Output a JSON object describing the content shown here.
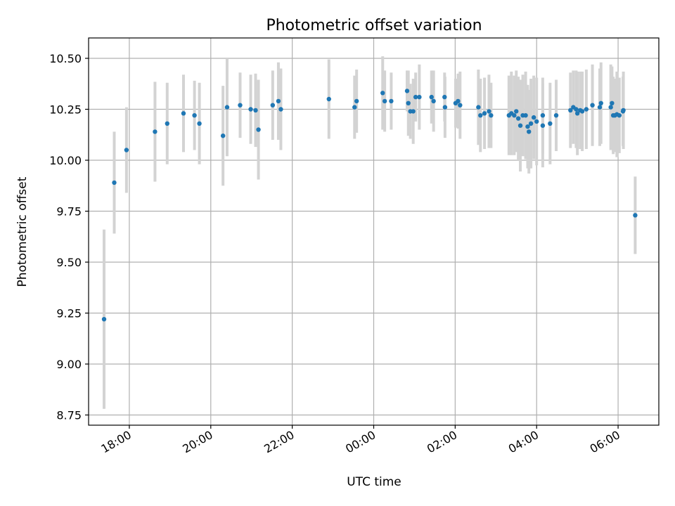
{
  "chart_data": {
    "type": "scatter",
    "title": "Photometric offset variation",
    "xlabel": "UTC time",
    "ylabel": "Photometric offset",
    "xlim": [
      17.0,
      31.0
    ],
    "ylim": [
      8.7,
      10.6
    ],
    "grid": true,
    "colors": {
      "point": "#1f77b4",
      "errorbar": "#d3d3d3"
    },
    "x_ticks": [
      {
        "value": 18,
        "label": "18:00"
      },
      {
        "value": 20,
        "label": "20:00"
      },
      {
        "value": 22,
        "label": "22:00"
      },
      {
        "value": 24,
        "label": "00:00"
      },
      {
        "value": 26,
        "label": "02:00"
      },
      {
        "value": 28,
        "label": "04:00"
      },
      {
        "value": 30,
        "label": "06:00"
      }
    ],
    "y_ticks": [
      {
        "value": 8.75,
        "label": "8.75"
      },
      {
        "value": 9.0,
        "label": "9.00"
      },
      {
        "value": 9.25,
        "label": "9.25"
      },
      {
        "value": 9.5,
        "label": "9.50"
      },
      {
        "value": 9.75,
        "label": "9.75"
      },
      {
        "value": 10.0,
        "label": "10.00"
      },
      {
        "value": 10.25,
        "label": "10.25"
      },
      {
        "value": 10.5,
        "label": "10.50"
      }
    ],
    "series": [
      {
        "name": "Photometric offset",
        "points": [
          [
            17.38,
            9.22,
            0.44
          ],
          [
            17.63,
            9.89,
            0.25
          ],
          [
            17.93,
            10.05,
            0.21
          ],
          [
            18.63,
            10.14,
            0.245
          ],
          [
            18.93,
            10.18,
            0.2
          ],
          [
            19.33,
            10.23,
            0.19
          ],
          [
            19.6,
            10.22,
            0.17
          ],
          [
            19.72,
            10.18,
            0.2
          ],
          [
            20.3,
            10.12,
            0.245
          ],
          [
            20.4,
            10.26,
            0.24
          ],
          [
            20.72,
            10.27,
            0.16
          ],
          [
            20.98,
            10.25,
            0.17
          ],
          [
            21.1,
            10.245,
            0.18
          ],
          [
            21.17,
            10.15,
            0.245
          ],
          [
            21.52,
            10.27,
            0.17
          ],
          [
            21.66,
            10.29,
            0.19
          ],
          [
            21.72,
            10.25,
            0.2
          ],
          [
            22.9,
            10.3,
            0.195
          ],
          [
            23.53,
            10.26,
            0.155
          ],
          [
            23.58,
            10.29,
            0.155
          ],
          [
            24.22,
            10.33,
            0.18
          ],
          [
            24.27,
            10.29,
            0.15
          ],
          [
            24.43,
            10.29,
            0.14
          ],
          [
            24.82,
            10.34,
            0.1
          ],
          [
            24.85,
            10.28,
            0.16
          ],
          [
            24.9,
            10.24,
            0.135
          ],
          [
            24.97,
            10.24,
            0.16
          ],
          [
            25.03,
            10.31,
            0.12
          ],
          [
            25.12,
            10.31,
            0.16
          ],
          [
            25.42,
            10.31,
            0.13
          ],
          [
            25.47,
            10.29,
            0.15
          ],
          [
            25.74,
            10.31,
            0.12
          ],
          [
            25.75,
            10.26,
            0.15
          ],
          [
            26.01,
            10.28,
            0.12
          ],
          [
            26.07,
            10.29,
            0.135
          ],
          [
            26.12,
            10.27,
            0.165
          ],
          [
            26.57,
            10.26,
            0.185
          ],
          [
            26.62,
            10.22,
            0.18
          ],
          [
            26.72,
            10.23,
            0.175
          ],
          [
            26.83,
            10.24,
            0.18
          ],
          [
            26.88,
            10.22,
            0.16
          ],
          [
            27.32,
            10.22,
            0.195
          ],
          [
            27.38,
            10.23,
            0.205
          ],
          [
            27.45,
            10.22,
            0.195
          ],
          [
            27.5,
            10.24,
            0.2
          ],
          [
            27.55,
            10.205,
            0.205
          ],
          [
            27.6,
            10.17,
            0.225
          ],
          [
            27.66,
            10.22,
            0.2
          ],
          [
            27.73,
            10.22,
            0.215
          ],
          [
            27.78,
            10.165,
            0.205
          ],
          [
            27.81,
            10.14,
            0.205
          ],
          [
            27.86,
            10.18,
            0.22
          ],
          [
            27.93,
            10.21,
            0.205
          ],
          [
            28.0,
            10.19,
            0.215
          ],
          [
            28.15,
            10.17,
            0.205
          ],
          [
            28.15,
            10.22,
            0.185
          ],
          [
            28.33,
            10.18,
            0.2
          ],
          [
            28.48,
            10.22,
            0.175
          ],
          [
            28.83,
            10.245,
            0.185
          ],
          [
            28.9,
            10.26,
            0.18
          ],
          [
            28.97,
            10.25,
            0.19
          ],
          [
            29.0,
            10.23,
            0.205
          ],
          [
            29.07,
            10.245,
            0.19
          ],
          [
            29.12,
            10.24,
            0.195
          ],
          [
            29.22,
            10.25,
            0.195
          ],
          [
            29.37,
            10.27,
            0.2
          ],
          [
            29.55,
            10.26,
            0.19
          ],
          [
            29.58,
            10.28,
            0.2
          ],
          [
            29.82,
            10.26,
            0.21
          ],
          [
            29.85,
            10.28,
            0.18
          ],
          [
            29.88,
            10.22,
            0.19
          ],
          [
            29.92,
            10.22,
            0.18
          ],
          [
            29.97,
            10.225,
            0.21
          ],
          [
            30.03,
            10.22,
            0.185
          ],
          [
            30.12,
            10.24,
            0.17
          ],
          [
            30.13,
            10.245,
            0.19
          ],
          [
            30.42,
            9.73,
            0.19
          ]
        ]
      }
    ]
  }
}
